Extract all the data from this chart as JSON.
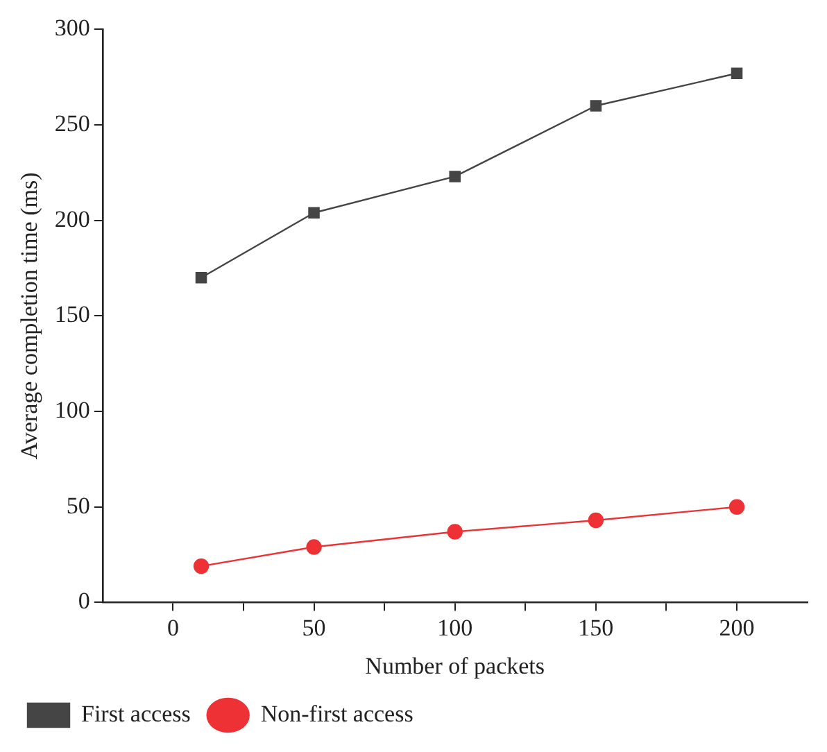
{
  "chart_data": {
    "type": "line",
    "xlabel": "Number of packets",
    "ylabel": "Average completion time (ms)",
    "x": [
      10,
      50,
      100,
      150,
      200
    ],
    "series": [
      {
        "name": "First access",
        "color": "#454545",
        "marker": "square",
        "values": [
          170,
          204,
          223,
          260,
          277
        ]
      },
      {
        "name": "Non-first access",
        "color": "#ee3135",
        "marker": "circle",
        "values": [
          19,
          29,
          37,
          43,
          50
        ]
      }
    ],
    "xlim": [
      -25,
      225
    ],
    "xticks": [
      0,
      {
        "value": 25,
        "label": null
      },
      50,
      {
        "value": 75,
        "label": null
      },
      100,
      {
        "value": 125,
        "label": null
      },
      150,
      {
        "value": 175,
        "label": null
      },
      200
    ],
    "ylim": [
      0,
      300
    ],
    "yticks": [
      0,
      50,
      100,
      150,
      200,
      250,
      300
    ],
    "grid": false,
    "legend": "bottom left",
    "line_style": "solid"
  }
}
